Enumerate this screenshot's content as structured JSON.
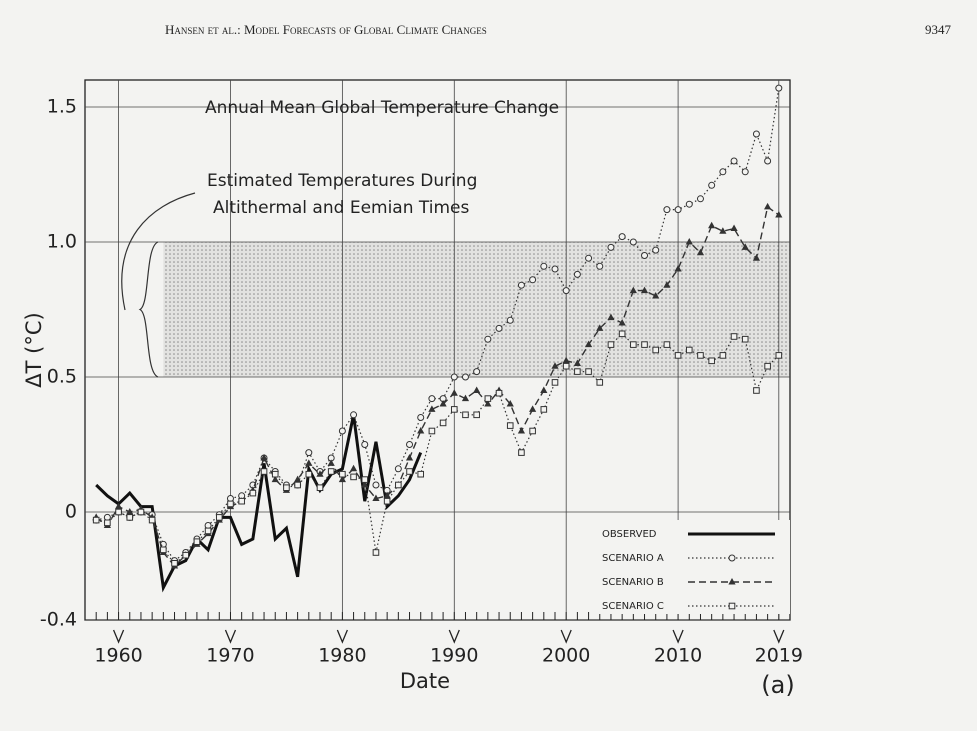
{
  "header": {
    "running_title": "Hansen et al.: Model Forecasts of Global Climate Changes",
    "page_number": "9347"
  },
  "chart_data": {
    "type": "line",
    "title": "Annual Mean Global Temperature Change",
    "annotation": [
      "Estimated Temperatures During",
      "Altithermal and Eemian Times"
    ],
    "shaded_band": {
      "y": [
        0.5,
        1.0
      ],
      "x_start": 1964
    },
    "x_label": "Date",
    "y_label": "ΔT (°C)",
    "panel_label": "(a)",
    "xlim": [
      1957,
      2020
    ],
    "xticks": [
      1960,
      1970,
      1980,
      1990,
      2000,
      2010,
      2019
    ],
    "ylim": [
      -0.4,
      1.6
    ],
    "yticks": [
      -0.4,
      0,
      0.5,
      {
        "value": 1,
        "label": "1.0"
      },
      1.5
    ],
    "grid": true,
    "legend": "lower right",
    "x": [
      1958,
      1959,
      1960,
      1961,
      1962,
      1963,
      1964,
      1965,
      1966,
      1967,
      1968,
      1969,
      1970,
      1971,
      1972,
      1973,
      1974,
      1975,
      1976,
      1977,
      1978,
      1979,
      1980,
      1981,
      1982,
      1983,
      1984,
      1985,
      1986,
      1987,
      1988,
      1989,
      1990,
      1991,
      1992,
      1993,
      1994,
      1995,
      1996,
      1997,
      1998,
      1999,
      2000,
      2001,
      2002,
      2003,
      2004,
      2005,
      2006,
      2007,
      2008,
      2009,
      2010,
      2011,
      2012,
      2013,
      2014,
      2015,
      2016,
      2017,
      2018,
      2019
    ],
    "series": [
      {
        "name": "OBSERVED",
        "color": "#111111",
        "dash": "solid",
        "marker": "none",
        "width": 3,
        "values": [
          0.1,
          0.06,
          0.03,
          0.07,
          0.02,
          0.02,
          -0.28,
          -0.2,
          -0.18,
          -0.1,
          -0.14,
          -0.02,
          -0.02,
          -0.12,
          -0.1,
          0.18,
          -0.1,
          -0.06,
          -0.24,
          0.16,
          0.08,
          0.14,
          0.16,
          0.36,
          0.04,
          0.26,
          0.02,
          0.06,
          0.12,
          0.22,
          null,
          null,
          null,
          null,
          null,
          null,
          null,
          null,
          null,
          null,
          null,
          null,
          null,
          null,
          null,
          null,
          null,
          null,
          null,
          null,
          null,
          null,
          null,
          null,
          null,
          null,
          null,
          null,
          null,
          null,
          null,
          null
        ]
      },
      {
        "name": "SCENARIO A",
        "color": "#333333",
        "dash": "dotted",
        "marker": "circle",
        "width": 1.2,
        "values": [
          -0.03,
          -0.02,
          0.0,
          -0.02,
          0.0,
          -0.01,
          -0.12,
          -0.18,
          -0.15,
          -0.1,
          -0.05,
          -0.01,
          0.05,
          0.06,
          0.1,
          0.2,
          0.15,
          0.1,
          0.1,
          0.22,
          0.15,
          0.2,
          0.3,
          0.36,
          0.25,
          0.1,
          0.08,
          0.16,
          0.25,
          0.35,
          0.42,
          0.42,
          0.5,
          0.5,
          0.52,
          0.64,
          0.68,
          0.71,
          0.84,
          0.86,
          0.91,
          0.9,
          0.82,
          0.88,
          0.94,
          0.91,
          0.98,
          1.02,
          1.0,
          0.95,
          0.97,
          1.12,
          1.12,
          1.14,
          1.16,
          1.21,
          1.26,
          1.3,
          1.26,
          1.4,
          1.3,
          1.57
        ]
      },
      {
        "name": "SCENARIO B",
        "color": "#333333",
        "dash": "dashed",
        "marker": "triangle",
        "width": 1.4,
        "values": [
          -0.02,
          -0.05,
          0.02,
          0.0,
          0.01,
          -0.02,
          -0.15,
          -0.2,
          -0.16,
          -0.12,
          -0.08,
          -0.03,
          0.02,
          0.04,
          0.08,
          0.2,
          0.12,
          0.08,
          0.12,
          0.18,
          0.14,
          0.18,
          0.12,
          0.16,
          0.1,
          0.05,
          0.06,
          0.1,
          0.2,
          0.3,
          0.38,
          0.4,
          0.44,
          0.42,
          0.45,
          0.4,
          0.45,
          0.4,
          0.3,
          0.38,
          0.45,
          0.54,
          0.56,
          0.55,
          0.62,
          0.68,
          0.72,
          0.7,
          0.82,
          0.82,
          0.8,
          0.84,
          0.9,
          1.0,
          0.96,
          1.06,
          1.04,
          1.05,
          0.98,
          0.94,
          1.13,
          1.1
        ]
      },
      {
        "name": "SCENARIO C",
        "color": "#333333",
        "dash": "dotted",
        "marker": "square",
        "width": 1.2,
        "values": [
          -0.03,
          -0.04,
          0.0,
          -0.02,
          0.0,
          -0.03,
          -0.14,
          -0.19,
          -0.16,
          -0.11,
          -0.07,
          -0.02,
          0.03,
          0.04,
          0.07,
          0.15,
          0.14,
          0.09,
          0.1,
          0.14,
          0.09,
          0.15,
          0.14,
          0.13,
          0.12,
          -0.15,
          0.04,
          0.1,
          0.15,
          0.14,
          0.3,
          0.33,
          0.38,
          0.36,
          0.36,
          0.42,
          0.44,
          0.32,
          0.22,
          0.3,
          0.38,
          0.48,
          0.54,
          0.52,
          0.52,
          0.48,
          0.62,
          0.66,
          0.62,
          0.62,
          0.6,
          0.62,
          0.58,
          0.6,
          0.58,
          0.56,
          0.58,
          0.65,
          0.64,
          0.45,
          0.54,
          0.58
        ]
      }
    ]
  }
}
